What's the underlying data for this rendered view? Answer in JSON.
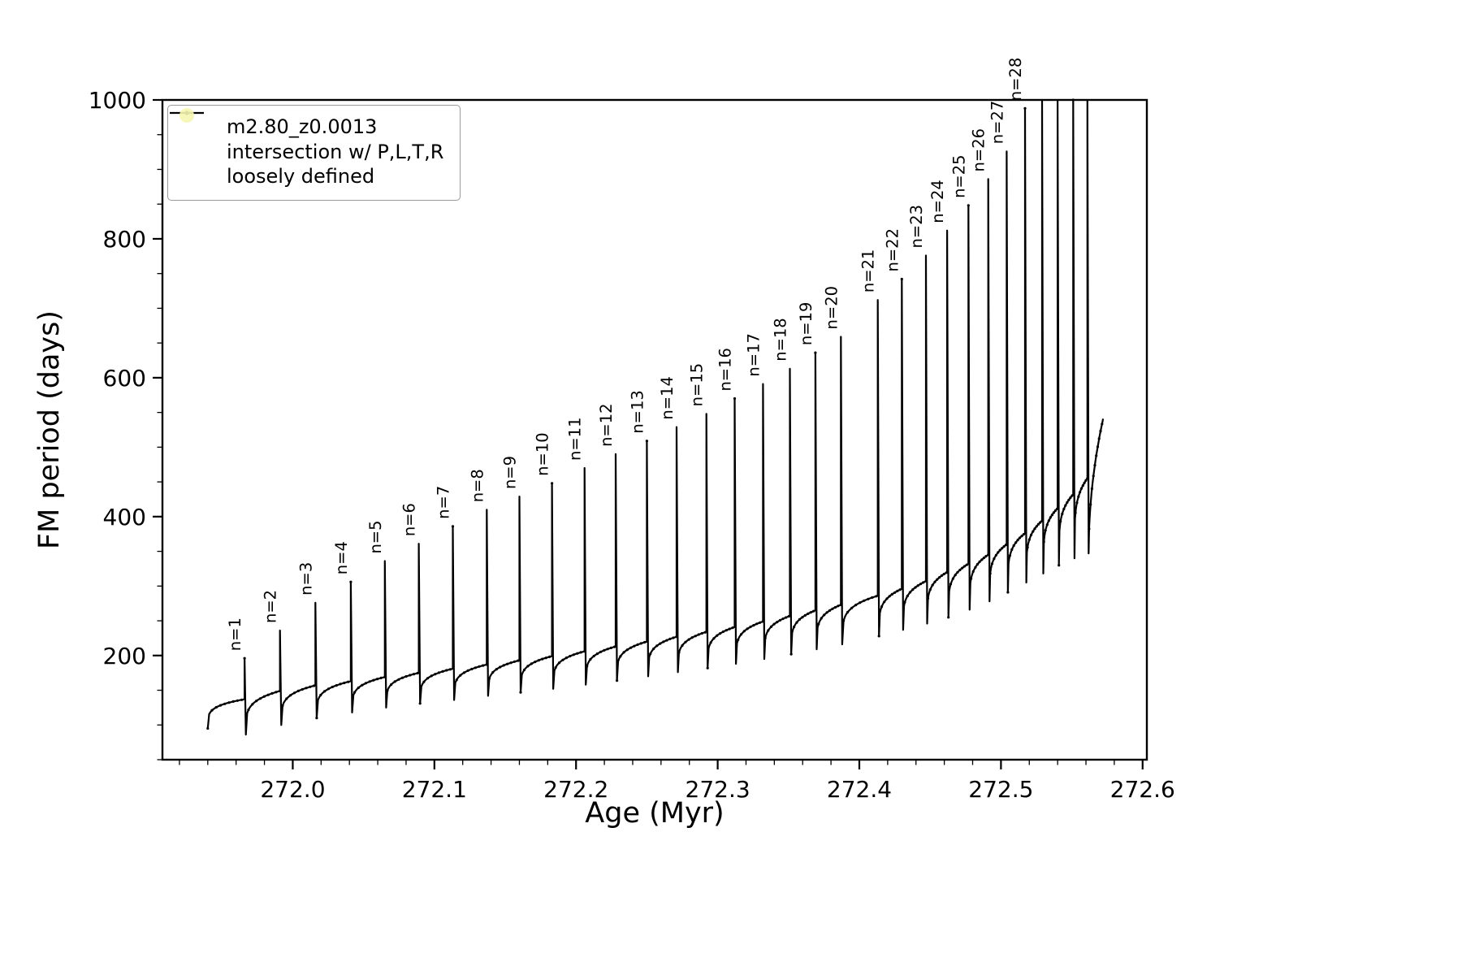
{
  "legend": {
    "entries": [
      {
        "type": "line-dot",
        "label": "m2.80_z0.0013",
        "color": "#000000"
      },
      {
        "type": "dot",
        "label_line1": "intersection w/ P,L,T,R",
        "label_line2": "loosely defined",
        "color": "#f6f6b2"
      }
    ]
  },
  "chart_data": {
    "type": "line",
    "title": "",
    "xlabel": "Age (Myr)",
    "ylabel": "FM period (days)",
    "xlim": [
      271.908,
      272.603
    ],
    "ylim": [
      50,
      1000
    ],
    "grid": false,
    "legend_position": "upper left",
    "xtick_values": [
      272.0,
      272.1,
      272.2,
      272.3,
      272.4,
      272.5,
      272.6
    ],
    "xtick_labels": [
      "272.0",
      "272.1",
      "272.2",
      "272.3",
      "272.4",
      "272.5",
      "272.6"
    ],
    "ytick_values": [
      200,
      400,
      600,
      800,
      1000
    ],
    "ytick_labels": [
      "200",
      "400",
      "600",
      "800",
      "1000"
    ],
    "x_minor_step": 0.02,
    "y_minor_step": 50,
    "series": [
      {
        "name": "m2.80_z0.0013",
        "color": "#000000"
      }
    ],
    "curve": {
      "start": {
        "age": 271.94,
        "value": 95
      },
      "tail_end": {
        "age": 272.572,
        "value": 540
      },
      "spikes": [
        {
          "n": 1,
          "age": 271.966,
          "peak": 196,
          "plateau": 137,
          "dip": 86
        },
        {
          "n": 2,
          "age": 271.991,
          "peak": 236,
          "plateau": 149,
          "dip": 100
        },
        {
          "n": 3,
          "age": 272.016,
          "peak": 276,
          "plateau": 157,
          "dip": 110
        },
        {
          "n": 4,
          "age": 272.041,
          "peak": 306,
          "plateau": 163,
          "dip": 118
        },
        {
          "n": 5,
          "age": 272.065,
          "peak": 336,
          "plateau": 169,
          "dip": 125
        },
        {
          "n": 6,
          "age": 272.089,
          "peak": 361,
          "plateau": 175,
          "dip": 131
        },
        {
          "n": 7,
          "age": 272.113,
          "peak": 386,
          "plateau": 181,
          "dip": 136
        },
        {
          "n": 8,
          "age": 272.137,
          "peak": 410,
          "plateau": 187,
          "dip": 142
        },
        {
          "n": 9,
          "age": 272.16,
          "peak": 429,
          "plateau": 193,
          "dip": 147
        },
        {
          "n": 10,
          "age": 272.183,
          "peak": 448,
          "plateau": 199,
          "dip": 152
        },
        {
          "n": 11,
          "age": 272.206,
          "peak": 470,
          "plateau": 206,
          "dip": 158
        },
        {
          "n": 12,
          "age": 272.228,
          "peak": 490,
          "plateau": 213,
          "dip": 164
        },
        {
          "n": 13,
          "age": 272.25,
          "peak": 509,
          "plateau": 220,
          "dip": 170
        },
        {
          "n": 14,
          "age": 272.271,
          "peak": 529,
          "plateau": 227,
          "dip": 176
        },
        {
          "n": 15,
          "age": 272.292,
          "peak": 548,
          "plateau": 234,
          "dip": 182
        },
        {
          "n": 16,
          "age": 272.312,
          "peak": 570,
          "plateau": 241,
          "dip": 188
        },
        {
          "n": 17,
          "age": 272.332,
          "peak": 591,
          "plateau": 249,
          "dip": 195
        },
        {
          "n": 18,
          "age": 272.351,
          "peak": 613,
          "plateau": 257,
          "dip": 202
        },
        {
          "n": 19,
          "age": 272.369,
          "peak": 636,
          "plateau": 265,
          "dip": 209
        },
        {
          "n": 20,
          "age": 272.387,
          "peak": 659,
          "plateau": 273,
          "dip": 216
        },
        {
          "n": 21,
          "age": 272.413,
          "peak": 712,
          "plateau": 286,
          "dip": 228
        },
        {
          "n": 22,
          "age": 272.43,
          "peak": 742,
          "plateau": 296,
          "dip": 237
        },
        {
          "n": 23,
          "age": 272.447,
          "peak": 776,
          "plateau": 307,
          "dip": 246
        },
        {
          "n": 24,
          "age": 272.462,
          "peak": 812,
          "plateau": 320,
          "dip": 255
        },
        {
          "n": 25,
          "age": 272.477,
          "peak": 848,
          "plateau": 332,
          "dip": 266
        },
        {
          "n": 26,
          "age": 272.491,
          "peak": 886,
          "plateau": 345,
          "dip": 278
        },
        {
          "n": 27,
          "age": 272.504,
          "peak": 926,
          "plateau": 360,
          "dip": 291
        },
        {
          "n": 28,
          "age": 272.517,
          "peak": 988,
          "plateau": 376,
          "dip": 305
        },
        {
          "n": null,
          "age": 272.529,
          "peak": 1040,
          "plateau": 394,
          "dip": 318
        },
        {
          "n": null,
          "age": 272.54,
          "peak": 1080,
          "plateau": 412,
          "dip": 330
        },
        {
          "n": null,
          "age": 272.551,
          "peak": 1120,
          "plateau": 432,
          "dip": 340
        },
        {
          "n": null,
          "age": 272.561,
          "peak": 1160,
          "plateau": 455,
          "dip": 347
        }
      ]
    }
  }
}
